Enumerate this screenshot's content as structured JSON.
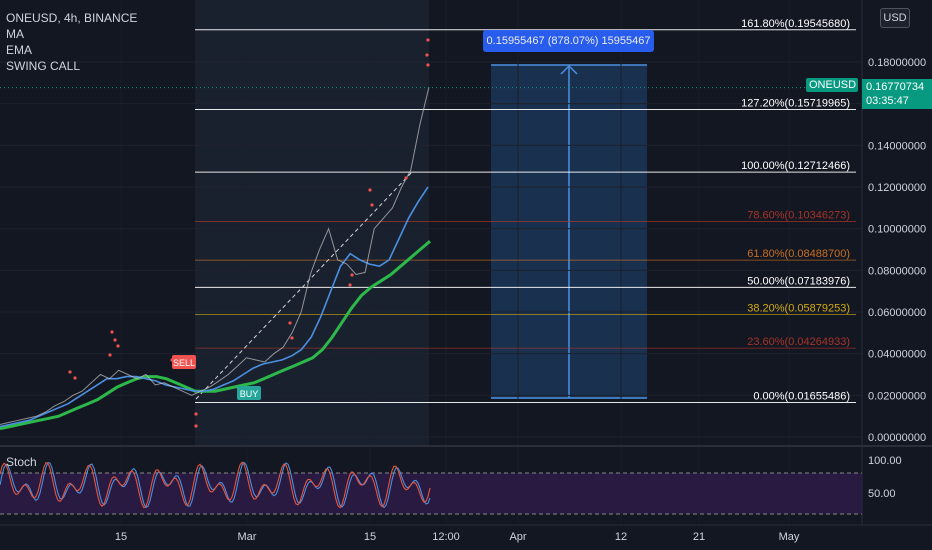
{
  "symbol_title": "ONEUSD, 4h, BINANCE",
  "indicators": [
    "MA",
    "EMA",
    "SWING CALL"
  ],
  "currency": "USD",
  "current_price": {
    "label": "ONEUSD",
    "value": "0.16770734",
    "countdown": "03:35:47"
  },
  "measure_label": "0.15955467 (878.07%) 15955467",
  "colors": {
    "background": "#131722",
    "price_tag": "#089981",
    "measure": "#2962ff",
    "ma_line": "#2db84a",
    "ema_line": "#4a90e2",
    "stoch_k": "#4a90e2",
    "stoch_d": "#e8543a",
    "stoch_band": "#7b3fa8"
  },
  "chart_data": {
    "type": "line",
    "symbol": "ONEUSD",
    "interval": "4h",
    "exchange": "BINANCE",
    "y_axis": {
      "ticks": [
        "0.18000000",
        "0.16000000",
        "0.14000000",
        "0.12000000",
        "0.10000000",
        "0.08000000",
        "0.06000000",
        "0.04000000",
        "0.02000000",
        "0.00000000"
      ],
      "range": [
        -0.002,
        0.205
      ]
    },
    "x_axis": {
      "ticks": [
        "15",
        "Mar",
        "15",
        "12:00",
        "Apr",
        "12",
        "21",
        "May"
      ]
    },
    "fib_levels": [
      {
        "label": "161.80%(0.19545680)",
        "price": 0.1954568,
        "color": "#ffffff"
      },
      {
        "label": "127.20%(0.15719965)",
        "price": 0.15719965,
        "color": "#ffffff"
      },
      {
        "label": "100.00%(0.12712466)",
        "price": 0.12712466,
        "color": "#ffffff"
      },
      {
        "label": "78.60%(0.10346273)",
        "price": 0.10346273,
        "color": "#c0392b"
      },
      {
        "label": "61.80%(0.08488700)",
        "price": 0.084887,
        "color": "#e67e22"
      },
      {
        "label": "50.00%(0.07183976)",
        "price": 0.07183976,
        "color": "#ffffff"
      },
      {
        "label": "38.20%(0.05879253)",
        "price": 0.05879253,
        "color": "#f1c40f"
      },
      {
        "label": "23.60%(0.04264933)",
        "price": 0.04264933,
        "color": "#c0392b"
      },
      {
        "label": "0.00%(0.01655486)",
        "price": 0.01655486,
        "color": "#ffffff"
      }
    ],
    "signals": [
      {
        "label": "SELL",
        "color": "#ef5350"
      },
      {
        "label": "BUY",
        "color": "#26a69a"
      }
    ],
    "stoch": {
      "label": "Stoch",
      "ticks": [
        "100.00",
        "50.00"
      ],
      "upper_band": 80,
      "lower_band": 20
    },
    "price_series": [
      0.006,
      0.007,
      0.008,
      0.009,
      0.01,
      0.012,
      0.015,
      0.017,
      0.02,
      0.022,
      0.026,
      0.03,
      0.028,
      0.032,
      0.03,
      0.028,
      0.03,
      0.025,
      0.026,
      0.024,
      0.022,
      0.02,
      0.022,
      0.024,
      0.027,
      0.03,
      0.034,
      0.038,
      0.037,
      0.036,
      0.04,
      0.043,
      0.05,
      0.06,
      0.078,
      0.09,
      0.1,
      0.085,
      0.083,
      0.078,
      0.079,
      0.1,
      0.105,
      0.11,
      0.12,
      0.128,
      0.15,
      0.168
    ],
    "ma_series": [
      0.004,
      0.005,
      0.006,
      0.007,
      0.008,
      0.009,
      0.01,
      0.012,
      0.014,
      0.016,
      0.018,
      0.021,
      0.024,
      0.026,
      0.028,
      0.029,
      0.029,
      0.028,
      0.026,
      0.024,
      0.022,
      0.022,
      0.022,
      0.023,
      0.024,
      0.025,
      0.026,
      0.028,
      0.03,
      0.032,
      0.034,
      0.036,
      0.038,
      0.042,
      0.048,
      0.055,
      0.062,
      0.068,
      0.072,
      0.075,
      0.078,
      0.082,
      0.086,
      0.09,
      0.094
    ],
    "ema_series": [
      0.005,
      0.006,
      0.007,
      0.008,
      0.01,
      0.012,
      0.014,
      0.016,
      0.019,
      0.022,
      0.025,
      0.028,
      0.028,
      0.029,
      0.029,
      0.028,
      0.027,
      0.025,
      0.024,
      0.023,
      0.022,
      0.022,
      0.023,
      0.025,
      0.027,
      0.03,
      0.033,
      0.035,
      0.036,
      0.037,
      0.039,
      0.042,
      0.048,
      0.058,
      0.07,
      0.082,
      0.088,
      0.085,
      0.083,
      0.082,
      0.085,
      0.095,
      0.105,
      0.113,
      0.12
    ]
  }
}
